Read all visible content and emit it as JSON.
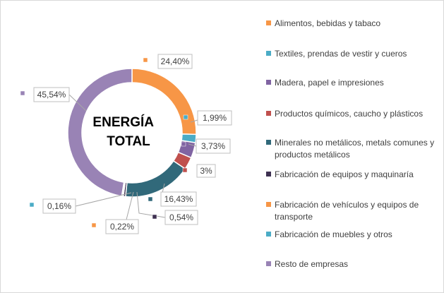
{
  "chart_data": {
    "type": "pie",
    "donut": true,
    "title": "ENERGÍA\nTOTAL",
    "legend_position": "right",
    "slices": [
      {
        "label": "Alimentos, bebidas y tabaco",
        "value": 24.4,
        "value_label": "24,40%",
        "color": "#F79646"
      },
      {
        "label": "Textiles, prendas de vestir y cueros",
        "value": 1.99,
        "value_label": "1,99%",
        "color": "#4BACC6"
      },
      {
        "label": "Madera, papel e impresiones",
        "value": 3.73,
        "value_label": "3,73%",
        "color": "#8064A2"
      },
      {
        "label": "Productos químicos, caucho y plásticos",
        "value": 3.0,
        "value_label": "3%",
        "color": "#C0504D"
      },
      {
        "label": "Minerales no metálicos, metals comunes y productos metálicos",
        "value": 16.43,
        "value_label": "16,43%",
        "color": "#31697A"
      },
      {
        "label": "Fabricación de equipos y maquinaría",
        "value": 0.54,
        "value_label": "0,54%",
        "color": "#3E3151"
      },
      {
        "label": "Fabricación de vehículos y equipos de transporte",
        "value": 0.22,
        "value_label": "0,22%",
        "color": "#F79646"
      },
      {
        "label": "Fabricación de muebles y otros",
        "value": 0.16,
        "value_label": "0,16%",
        "color": "#4BACC6"
      },
      {
        "label": "Resto de empresas",
        "value": 45.54,
        "value_label": "45,54%",
        "color": "#9983B5"
      }
    ]
  }
}
